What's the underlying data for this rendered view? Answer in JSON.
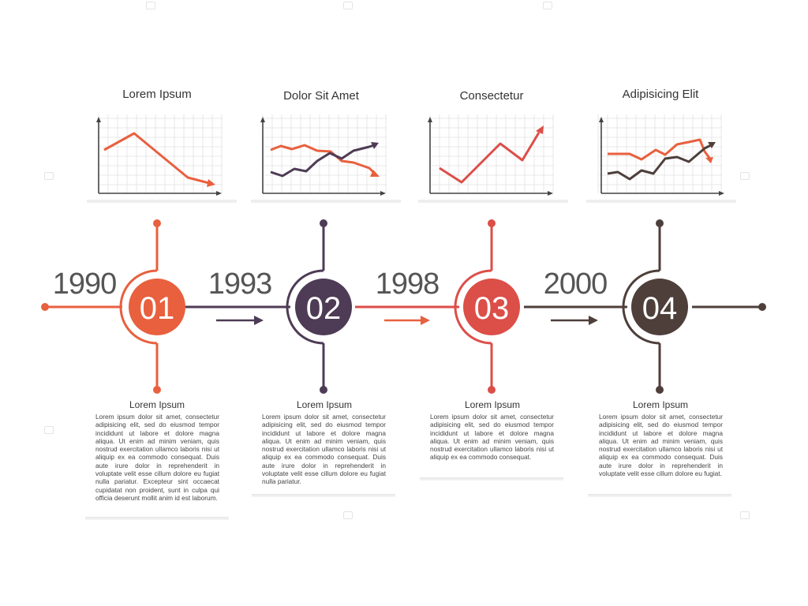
{
  "colors": {
    "c1": "#e8603e",
    "c2": "#4e3b55",
    "c3": "#dc4e48",
    "c4": "#4e3f3b",
    "grid": "#e2e2e2",
    "axis": "#444444"
  },
  "stages": [
    {
      "number": "01",
      "year": "1990",
      "chart_title": "Lorem Ipsum",
      "body_title": "Lorem Ipsum",
      "body_text": "Lorem ipsum dolor sit amet, consectetur adipisicing elit, sed do eiusmod tempor incididunt ut labore et dolore magna aliqua. Ut enim ad minim veniam, quis nostrud exercitation ullamco laboris nisi ut aliquip ex ea commodo consequat. Duis aute irure dolor in reprehenderit in voluptate velit esse cillum dolore eu fugiat nulla pariatur. Excepteur sint occaecat cupidatat non proident, sunt in culpa qui officia deserunt mollit anim id est laborum."
    },
    {
      "number": "02",
      "year": "1993",
      "chart_title": "Dolor Sit Amet",
      "body_title": "Lorem Ipsum",
      "body_text": "Lorem ipsum dolor sit amet, consectetur adipisicing elit, sed do eiusmod tempor incididunt ut labore et dolore magna aliqua. Ut enim ad minim veniam, quis nostrud exercitation ullamco laboris nisi ut aliquip ex ea commodo consequat. Duis aute irure dolor in reprehenderit in voluptate velit esse cillum dolore eu fugiat nulla pariatur."
    },
    {
      "number": "03",
      "year": "1998",
      "chart_title": "Consectetur",
      "body_title": "Lorem Ipsum",
      "body_text": "Lorem ipsum dolor sit amet, consectetur adipisicing elit, sed do eiusmod tempor incididunt ut labore et dolore magna aliqua. Ut enim ad minim veniam, quis nostrud exercitation ullamco laboris nisi ut aliquip ex ea commodo consequat."
    },
    {
      "number": "04",
      "year": "2000",
      "chart_title": "Adipisicing Elit",
      "body_title": "Lorem Ipsum",
      "body_text": "Lorem ipsum dolor sit amet, consectetur adipisicing elit, sed do eiusmod tempor incididunt ut labore et dolore magna aliqua. Ut enim ad minim veniam, quis nostrud exercitation ullamco laboris nisi ut aliquip ex ea commodo consequat. Duis aute irure dolor in reprehenderit in voluptate velit esse cillum dolore eu fugiat."
    }
  ]
}
